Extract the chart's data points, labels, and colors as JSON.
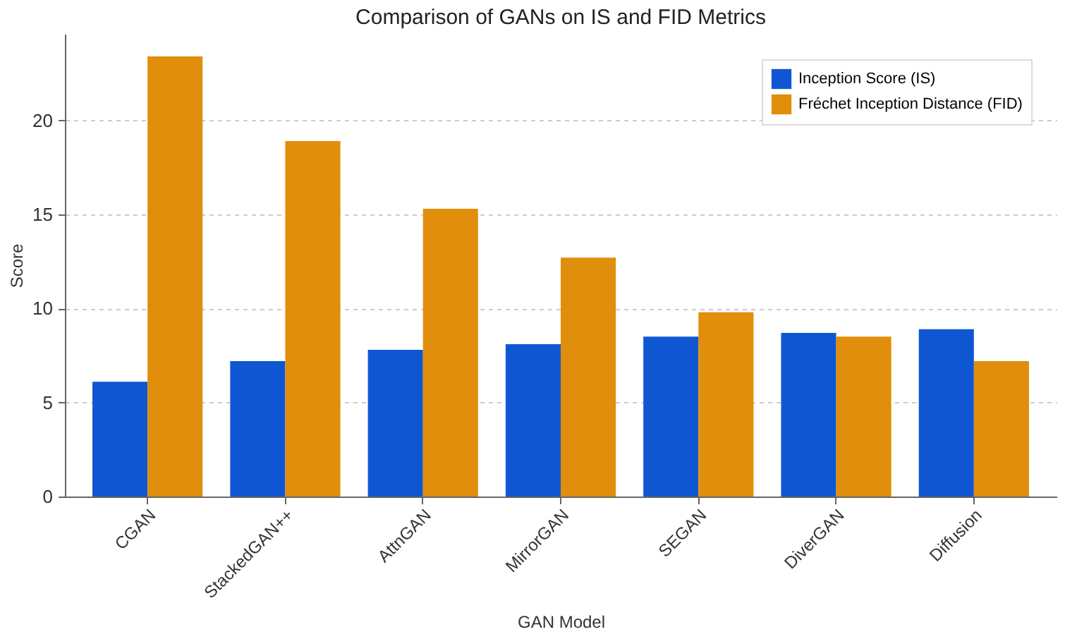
{
  "chart_data": {
    "type": "bar",
    "title": "Comparison of GANs on IS and FID Metrics",
    "xlabel": "GAN Model",
    "ylabel": "Score",
    "categories": [
      "CGAN",
      "StackedGAN++",
      "AttnGAN",
      "MirrorGAN",
      "SEGAN",
      "DiverGAN",
      "Diffusion"
    ],
    "series": [
      {
        "name": "Inception Score (IS)",
        "color": "#0f57d2",
        "values": [
          6.1,
          7.2,
          7.8,
          8.1,
          8.5,
          8.7,
          8.9
        ]
      },
      {
        "name": "Fréchet Inception Distance (FID)",
        "color": "#e08e0b",
        "values": [
          23.4,
          18.9,
          15.3,
          12.7,
          9.8,
          8.5,
          7.2
        ]
      }
    ],
    "ylim": [
      0,
      24.6
    ],
    "yticks": [
      0,
      5,
      10,
      15,
      20
    ],
    "grid": "y",
    "legend": "top right"
  }
}
